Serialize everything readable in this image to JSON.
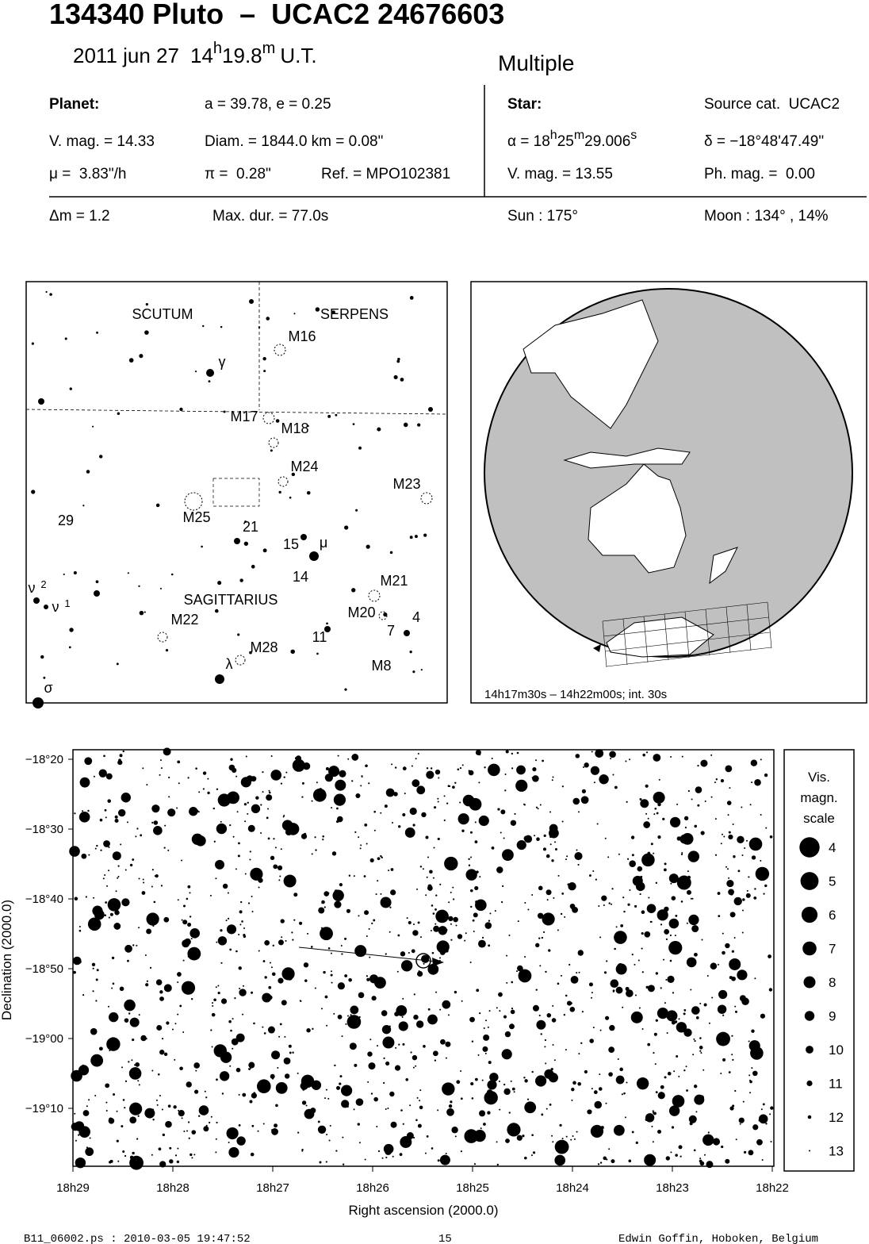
{
  "header": {
    "title": "134340 Pluto  –  UCAC2 24676603",
    "date": "2011 jun 27",
    "time": [
      "14",
      "h",
      "19.8",
      "m",
      "U.T."
    ],
    "mode": "Multiple"
  },
  "planet": {
    "label": "Planet:",
    "orbit": "a = 39.78, e = 0.25",
    "vmag": "V. mag. = 14.33",
    "diameter": "Diam. = 1844.0 km = 0.08\"",
    "motion": "μ =  3.83\"/h",
    "parallax": "π =  0.28\"",
    "reference": "Ref. = MPO102381"
  },
  "star": {
    "label": "Star:",
    "catalog": "Source cat.  UCAC2",
    "ra": [
      "α = 18",
      "h",
      "25",
      "m",
      "29.006",
      "s"
    ],
    "dec": "δ = −18°48'47.49\"",
    "vmag": "V. mag. = 13.55",
    "phmag": "Ph. mag. =  0.00"
  },
  "event": {
    "delta_mag": "Δm = 1.2",
    "max_duration": "Max. dur. = 77.0s",
    "sun": "Sun : 175°",
    "moon": "Moon : 134° , 14%"
  },
  "finder_map": {
    "labels": [
      "SCUTUM",
      "SERPENS",
      "M16",
      "γ",
      "M17",
      "M18",
      "M24",
      "M23",
      "29",
      "M25",
      "21",
      "15",
      "μ",
      "14",
      "M21",
      "ν",
      "2",
      "ν",
      "1",
      "SAGITTARIUS",
      "M20",
      "4",
      "M22",
      "7",
      "11",
      "M28",
      "λ",
      "M8",
      "σ"
    ]
  },
  "globe": {
    "caption": "14h17m30s – 14h22m00s; int. 30s"
  },
  "star_chart": {
    "y_axis_title": "Declination (2000.0)",
    "x_axis_title": "Right ascension (2000.0)",
    "dec_ticks": [
      "−18°20",
      "−18°30",
      "−18°40",
      "−18°50",
      "−19°00",
      "−19°10"
    ],
    "ra_ticks": [
      "18h29",
      "18h28",
      "18h27",
      "18h26",
      "18h25",
      "18h24",
      "18h23",
      "18h22"
    ],
    "legend": {
      "title": [
        "Vis.",
        "magn.",
        "scale"
      ],
      "magnitudes": [
        4,
        5,
        6,
        7,
        8,
        9,
        10,
        11,
        12,
        13
      ]
    }
  },
  "footer": {
    "file": "B11_06002.ps : 2010-03-05 19:47:52",
    "page": "15",
    "author": "Edwin Goffin, Hoboken, Belgium"
  }
}
